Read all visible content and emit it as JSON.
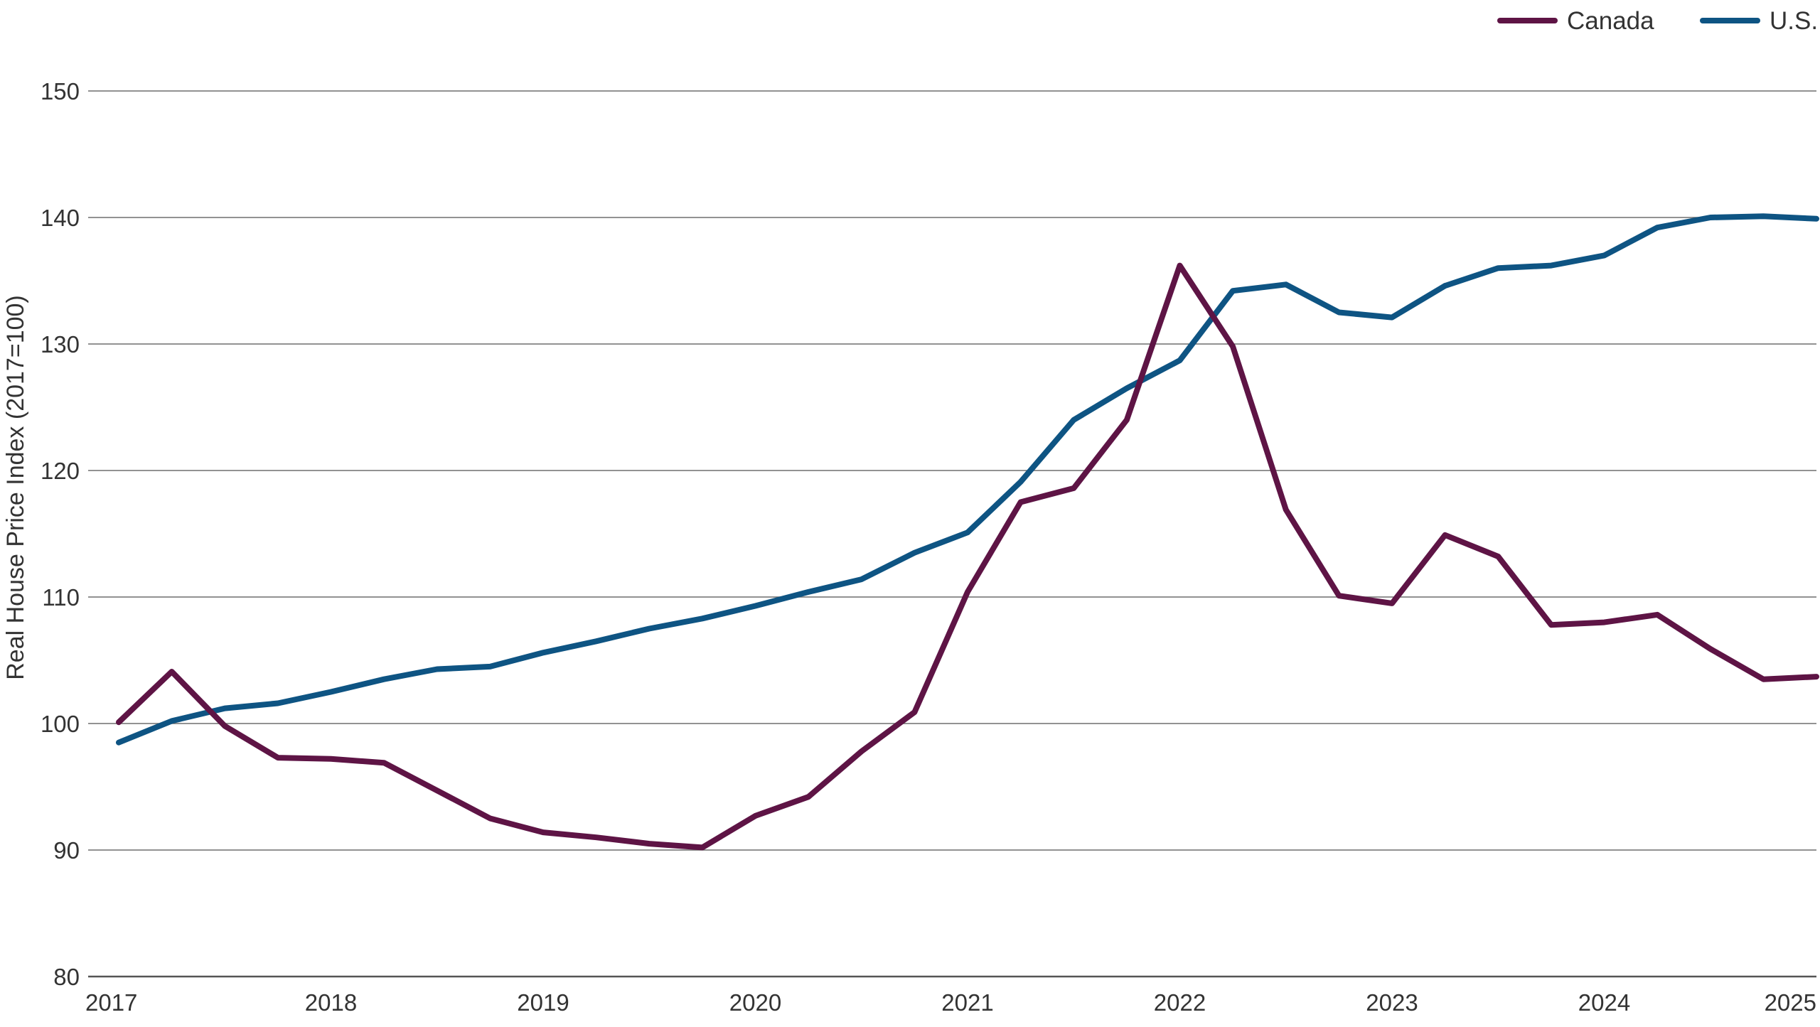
{
  "chart_data": {
    "type": "line",
    "xlabel": "",
    "ylabel": "Real House Price Index (2017=100)",
    "ylim": [
      80,
      150
    ],
    "xlim": [
      2017,
      2025
    ],
    "y_ticks": [
      "80",
      "90",
      "100",
      "110",
      "120",
      "130",
      "140",
      "150"
    ],
    "x_ticks": [
      "2017",
      "2018",
      "2019",
      "2020",
      "2021",
      "2022",
      "2023",
      "2024",
      "2025"
    ],
    "grid": "horizontal",
    "legend_position": "top-right",
    "x": [
      2017.0,
      2017.25,
      2017.5,
      2017.75,
      2018.0,
      2018.25,
      2018.5,
      2018.75,
      2019.0,
      2019.25,
      2019.5,
      2019.75,
      2020.0,
      2020.25,
      2020.5,
      2020.75,
      2021.0,
      2021.25,
      2021.5,
      2021.75,
      2022.0,
      2022.25,
      2022.5,
      2022.75,
      2023.0,
      2023.25,
      2023.5,
      2023.75,
      2024.0,
      2024.25,
      2024.5,
      2024.75,
      2025.0
    ],
    "series": [
      {
        "name": "Canada",
        "color": "#5e1445",
        "values": [
          100.1,
          104.1,
          99.8,
          97.3,
          97.2,
          96.9,
          94.7,
          92.5,
          91.4,
          91.0,
          90.5,
          90.2,
          92.7,
          94.2,
          97.8,
          100.9,
          110.4,
          117.5,
          118.6,
          124.0,
          136.2,
          129.8,
          116.9,
          110.1,
          109.5,
          114.9,
          113.2,
          107.8,
          108.0,
          108.6,
          105.9,
          103.5,
          103.7
        ]
      },
      {
        "name": "U.S.",
        "color": "#0e5483",
        "values": [
          98.5,
          100.2,
          101.2,
          101.6,
          102.5,
          103.5,
          104.3,
          104.5,
          105.6,
          106.5,
          107.5,
          108.3,
          109.3,
          110.4,
          111.4,
          113.5,
          115.1,
          119.1,
          124.0,
          126.5,
          128.7,
          134.2,
          134.7,
          132.5,
          132.1,
          134.6,
          136.0,
          136.2,
          137.0,
          139.2,
          140.0,
          140.1,
          139.9
        ]
      }
    ]
  }
}
